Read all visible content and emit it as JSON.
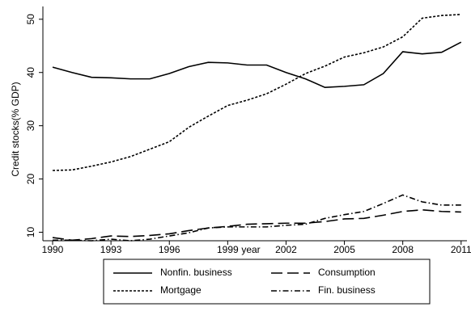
{
  "chart_data": {
    "type": "line",
    "x_label": "year",
    "y_label": "Credit stocks(% GDP)",
    "x": [
      1990,
      1991,
      1992,
      1993,
      1994,
      1995,
      1996,
      1997,
      1998,
      1999,
      2000,
      2001,
      2002,
      2003,
      2004,
      2005,
      2006,
      2007,
      2008,
      2009,
      2010,
      2011
    ],
    "series": [
      {
        "name": "Nonfin. business",
        "color": "#000000",
        "dash": "solid",
        "values": [
          41,
          40,
          39.1,
          39,
          38.8,
          38.8,
          39.8,
          41.1,
          41.9,
          41.8,
          41.4,
          41.4,
          40,
          38.8,
          37.2,
          37.4,
          37.7,
          39.8,
          43.9,
          43.5,
          43.8,
          45.7
        ]
      },
      {
        "name": "Consumption",
        "color": "#000000",
        "dash": "long-dash",
        "values": [
          9,
          8.5,
          8.8,
          9.3,
          9.2,
          9.4,
          9.7,
          10.3,
          10.8,
          11.1,
          11.5,
          11.6,
          11.7,
          11.7,
          12,
          12.5,
          12.6,
          13.2,
          13.9,
          14.2,
          13.9,
          13.8
        ]
      },
      {
        "name": "Mortgage",
        "color": "#000000",
        "dash": "dot",
        "values": [
          21.6,
          21.7,
          22.4,
          23.2,
          24.2,
          25.6,
          27,
          29.7,
          31.8,
          33.8,
          34.8,
          36,
          37.8,
          39.8,
          41.2,
          42.9,
          43.7,
          44.8,
          46.7,
          50.2,
          50.7,
          50.9
        ]
      },
      {
        "name": "Fin. business",
        "color": "#000000",
        "dash": "dash-dot",
        "values": [
          8.5,
          8.5,
          8.4,
          8.7,
          8.4,
          8.7,
          9.3,
          9.9,
          10.8,
          11,
          11,
          11,
          11.3,
          11.5,
          12.6,
          13.3,
          13.9,
          15.4,
          17,
          15.7,
          15.1,
          15.1
        ]
      }
    ],
    "xlim": [
      1989.5,
      2011.3
    ],
    "xticks": [
      1990,
      1993,
      1996,
      1999,
      2002,
      2005,
      2008,
      2011
    ],
    "ylim": [
      8.4,
      52.4
    ],
    "yticks": [
      10,
      20,
      30,
      40,
      50
    ],
    "legend": "bottom"
  }
}
